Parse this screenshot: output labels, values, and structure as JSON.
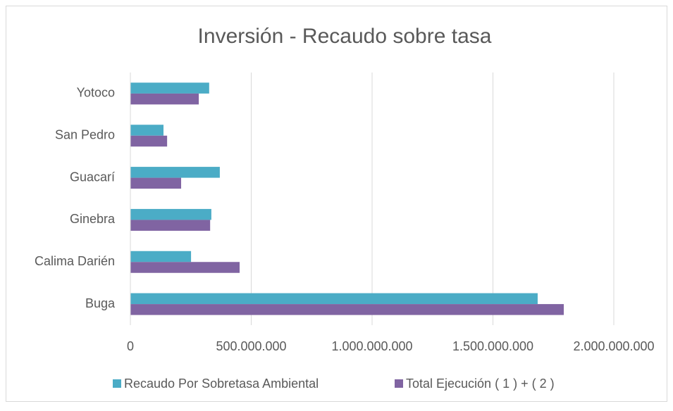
{
  "chart_data": {
    "type": "bar",
    "orientation": "horizontal",
    "title": "Inversión - Recaudo sobre tasa",
    "categories": [
      "Buga",
      "Calima Darién",
      "Ginebra",
      "Guacarí",
      "San Pedro",
      "Yotoco"
    ],
    "series": [
      {
        "name": "Recaudo Por Sobretasa Ambiental",
        "color": "#4bacc6",
        "values": [
          1685000000,
          251000000,
          335000000,
          370000000,
          137000000,
          326000000
        ]
      },
      {
        "name": "Total Ejecución ( 1 ) + ( 2 )",
        "color": "#8064a2",
        "values": [
          1793000000,
          452000000,
          330000000,
          210000000,
          152000000,
          283000000
        ]
      }
    ],
    "xlim": [
      0,
      2000000000
    ],
    "xticks": [
      0,
      {
        "value": 500000000,
        "label": "500.000.000"
      },
      {
        "value": 1000000000,
        "label": "1.000.000.000"
      },
      {
        "value": 1500000000,
        "label": "1.500.000.000"
      },
      {
        "value": 2000000000,
        "label": "2.000.000.000"
      }
    ],
    "grid": true,
    "legend": "bottom"
  }
}
